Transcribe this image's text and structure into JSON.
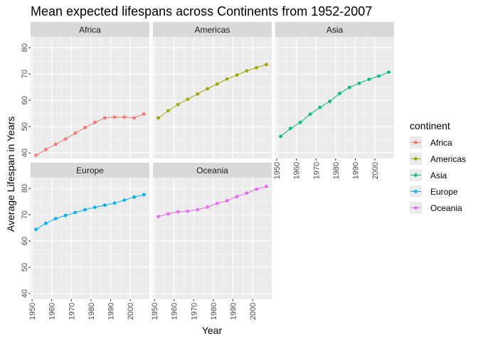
{
  "chart_data": {
    "type": "line",
    "title": "Mean expected lifespans across Continents from 1952-2007",
    "xlabel": "Year",
    "ylabel": "Average Lifespan in Years",
    "xlim": [
      1952,
      2007
    ],
    "ylim": [
      40,
      82
    ],
    "x_ticks": [
      1950,
      1960,
      1970,
      1980,
      1990,
      2000
    ],
    "y_ticks": [
      40,
      50,
      60,
      70,
      80
    ],
    "x": [
      1952,
      1957,
      1962,
      1967,
      1972,
      1977,
      1982,
      1987,
      1992,
      1997,
      2002,
      2007
    ],
    "legend_title": "continent",
    "legend_position": "right",
    "grid": true,
    "series": [
      {
        "name": "Africa",
        "color": "#F8766D",
        "values": [
          39.1,
          41.3,
          43.3,
          45.3,
          47.5,
          49.6,
          51.6,
          53.3,
          53.6,
          53.6,
          53.3,
          54.8
        ]
      },
      {
        "name": "Americas",
        "color": "#A3A500",
        "values": [
          53.3,
          56.0,
          58.4,
          60.4,
          62.4,
          64.4,
          66.2,
          68.1,
          69.6,
          71.2,
          72.4,
          73.6
        ]
      },
      {
        "name": "Asia",
        "color": "#00BF7D",
        "values": [
          46.3,
          49.3,
          51.6,
          54.7,
          57.3,
          59.6,
          62.6,
          64.9,
          66.5,
          68.0,
          69.2,
          70.7
        ]
      },
      {
        "name": "Europe",
        "color": "#00B0F6",
        "values": [
          64.4,
          66.7,
          68.5,
          69.7,
          70.8,
          71.9,
          72.8,
          73.6,
          74.4,
          75.5,
          76.7,
          77.6
        ]
      },
      {
        "name": "Oceania",
        "color": "#E76BF3",
        "values": [
          69.3,
          70.3,
          71.1,
          71.3,
          71.9,
          72.9,
          74.3,
          75.3,
          76.9,
          78.2,
          79.7,
          80.7
        ]
      }
    ]
  }
}
